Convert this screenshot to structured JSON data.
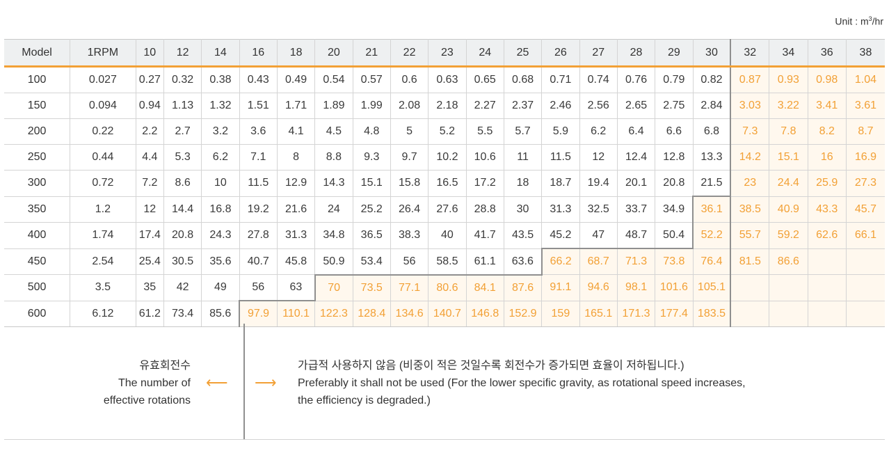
{
  "unit_label": "Unit : m",
  "unit_sup": "3",
  "unit_suffix": "/hr",
  "columns": [
    "Model",
    "1RPM",
    "10",
    "12",
    "14",
    "16",
    "18",
    "20",
    "21",
    "22",
    "23",
    "24",
    "25",
    "26",
    "27",
    "28",
    "29",
    "30",
    "32",
    "34",
    "36",
    "38"
  ],
  "rows": [
    {
      "model": "100",
      "rpm": "0.027",
      "values": [
        "0.27",
        "0.32",
        "0.38",
        "0.43",
        "0.49",
        "0.54",
        "0.57",
        "0.6",
        "0.63",
        "0.65",
        "0.68",
        "0.71",
        "0.74",
        "0.76",
        "0.79",
        "0.82",
        "0.87",
        "0.93",
        "0.98",
        "1.04"
      ]
    },
    {
      "model": "150",
      "rpm": "0.094",
      "values": [
        "0.94",
        "1.13",
        "1.32",
        "1.51",
        "1.71",
        "1.89",
        "1.99",
        "2.08",
        "2.18",
        "2.27",
        "2.37",
        "2.46",
        "2.56",
        "2.65",
        "2.75",
        "2.84",
        "3.03",
        "3.22",
        "3.41",
        "3.61"
      ]
    },
    {
      "model": "200",
      "rpm": "0.22",
      "values": [
        "2.2",
        "2.7",
        "3.2",
        "3.6",
        "4.1",
        "4.5",
        "4.8",
        "5",
        "5.2",
        "5.5",
        "5.7",
        "5.9",
        "6.2",
        "6.4",
        "6.6",
        "6.8",
        "7.3",
        "7.8",
        "8.2",
        "8.7"
      ]
    },
    {
      "model": "250",
      "rpm": "0.44",
      "values": [
        "4.4",
        "5.3",
        "6.2",
        "7.1",
        "8",
        "8.8",
        "9.3",
        "9.7",
        "10.2",
        "10.6",
        "11",
        "11.5",
        "12",
        "12.4",
        "12.8",
        "13.3",
        "14.2",
        "15.1",
        "16",
        "16.9"
      ]
    },
    {
      "model": "300",
      "rpm": "0.72",
      "values": [
        "7.2",
        "8.6",
        "10",
        "11.5",
        "12.9",
        "14.3",
        "15.1",
        "15.8",
        "16.5",
        "17.2",
        "18",
        "18.7",
        "19.4",
        "20.1",
        "20.8",
        "21.5",
        "23",
        "24.4",
        "25.9",
        "27.3"
      ]
    },
    {
      "model": "350",
      "rpm": "1.2",
      "values": [
        "12",
        "14.4",
        "16.8",
        "19.2",
        "21.6",
        "24",
        "25.2",
        "26.4",
        "27.6",
        "28.8",
        "30",
        "31.3",
        "32.5",
        "33.7",
        "34.9",
        "36.1",
        "38.5",
        "40.9",
        "43.3",
        "45.7"
      ]
    },
    {
      "model": "400",
      "rpm": "1.74",
      "values": [
        "17.4",
        "20.8",
        "24.3",
        "27.8",
        "31.3",
        "34.8",
        "36.5",
        "38.3",
        "40",
        "41.7",
        "43.5",
        "45.2",
        "47",
        "48.7",
        "50.4",
        "52.2",
        "55.7",
        "59.2",
        "62.6",
        "66.1"
      ]
    },
    {
      "model": "450",
      "rpm": "2.54",
      "values": [
        "25.4",
        "30.5",
        "35.6",
        "40.7",
        "45.8",
        "50.9",
        "53.4",
        "56",
        "58.5",
        "61.1",
        "63.6",
        "66.2",
        "68.7",
        "71.3",
        "73.8",
        "76.4",
        "81.5",
        "86.6",
        "",
        ""
      ]
    },
    {
      "model": "500",
      "rpm": "3.5",
      "values": [
        "35",
        "42",
        "49",
        "56",
        "63",
        "70",
        "73.5",
        "77.1",
        "80.6",
        "84.1",
        "87.6",
        "91.1",
        "94.6",
        "98.1",
        "101.6",
        "105.1",
        "",
        "",
        "",
        ""
      ]
    },
    {
      "model": "600",
      "rpm": "6.12",
      "values": [
        "61.2",
        "73.4",
        "85.6",
        "97.9",
        "110.1",
        "122.3",
        "128.4",
        "134.6",
        "140.7",
        "146.8",
        "152.9",
        "159",
        "165.1",
        "171.3",
        "177.4",
        "183.5",
        "",
        "",
        "",
        ""
      ]
    }
  ],
  "effective_from": [
    16,
    16,
    16,
    16,
    16,
    15,
    15,
    11,
    5,
    3
  ],
  "legend": {
    "left_kr": "유효회전수",
    "left_en_1": "The number of",
    "left_en_2": "effective rotations",
    "right_kr": "가급적 사용하지 않음 (비중이 적은 것일수록 회전수가 증가되면 효율이 저하됩니다.)",
    "right_en_1": "Preferably it shall not be used (For the lower specific gravity, as rotational speed increases,",
    "right_en_2": "the efficiency is degraded.)",
    "arrow_left": "⟵",
    "arrow_right": "⟶",
    "accent": "#f2a035"
  }
}
